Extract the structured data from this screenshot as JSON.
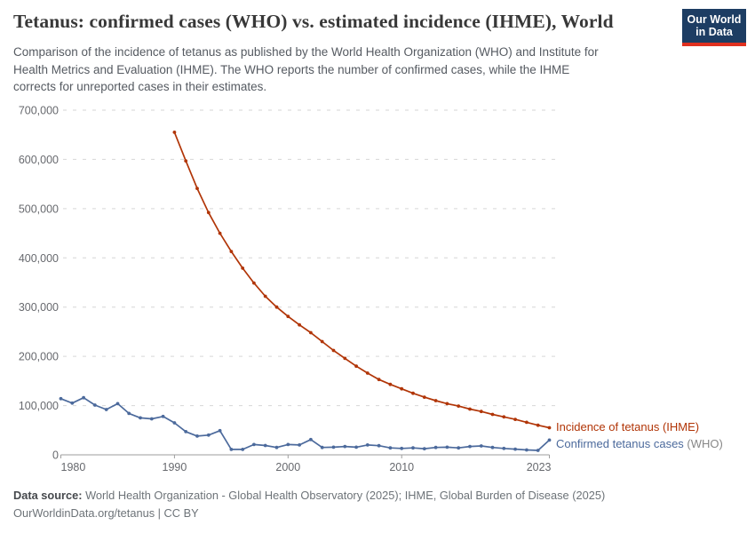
{
  "header": {
    "title": "Tetanus: confirmed cases (WHO) vs. estimated incidence (IHME), World",
    "subtitle_lines": [
      "Comparison of the incidence of tetanus as published by the World Health Organization (WHO) and Institute for",
      "Health Metrics and Evaluation (IHME). The WHO reports the number of confirmed cases, while the IHME",
      "corrects for unreported cases in their estimates."
    ],
    "logo": {
      "line1": "Our World",
      "line2": "in Data",
      "bg_color": "#1d3d63",
      "stripe_color": "#e0301f"
    }
  },
  "chart_data": {
    "type": "line",
    "title": "Tetanus: confirmed cases (WHO) vs. estimated incidence (IHME), World",
    "xlabel": "",
    "ylabel": "",
    "xlim": [
      1980,
      2023
    ],
    "ylim": [
      0,
      700000
    ],
    "xticks": [
      1980,
      1990,
      2000,
      2010,
      2023
    ],
    "yticks": [
      0,
      100000,
      200000,
      300000,
      400000,
      500000,
      600000,
      700000
    ],
    "grid": "horizontal-dashed",
    "legend_position": "right-of-line-ends",
    "series": [
      {
        "name": "Incidence of tetanus (IHME)",
        "color": "#B13507",
        "start_year": 1990,
        "values": [
          655000,
          597000,
          541000,
          492000,
          450000,
          413000,
          379000,
          349000,
          322000,
          300000,
          281000,
          264000,
          248000,
          230000,
          212000,
          196000,
          180000,
          166000,
          153000,
          143000,
          134000,
          125000,
          117000,
          110000,
          104000,
          99000,
          93000,
          88000,
          82000,
          77000,
          72000,
          66000,
          60000,
          55000
        ]
      },
      {
        "name": "Confirmed tetanus cases (WHO)",
        "label_main": "Confirmed tetanus cases",
        "label_suffix": " (WHO)",
        "label_suffix_color": "#878787",
        "color": "#4C6A9C",
        "start_year": 1980,
        "values": [
          114000,
          105000,
          116000,
          101000,
          92000,
          104000,
          84000,
          75000,
          73000,
          78000,
          65000,
          47000,
          38000,
          40000,
          49000,
          11000,
          11000,
          21000,
          19000,
          15000,
          21000,
          20000,
          31000,
          15000,
          15500,
          17000,
          15500,
          20000,
          18500,
          14000,
          13000,
          14000,
          12500,
          15000,
          15500,
          14000,
          17000,
          18000,
          15000,
          13000,
          11500,
          10000,
          9000,
          30000
        ]
      }
    ]
  },
  "footer": {
    "datasource_label": "Data source:",
    "datasource_text": " World Health Organization - Global Health Observatory (2025); IHME, Global Burden of Disease (2025)",
    "link_line": "OurWorldinData.org/tetanus | CC BY"
  }
}
